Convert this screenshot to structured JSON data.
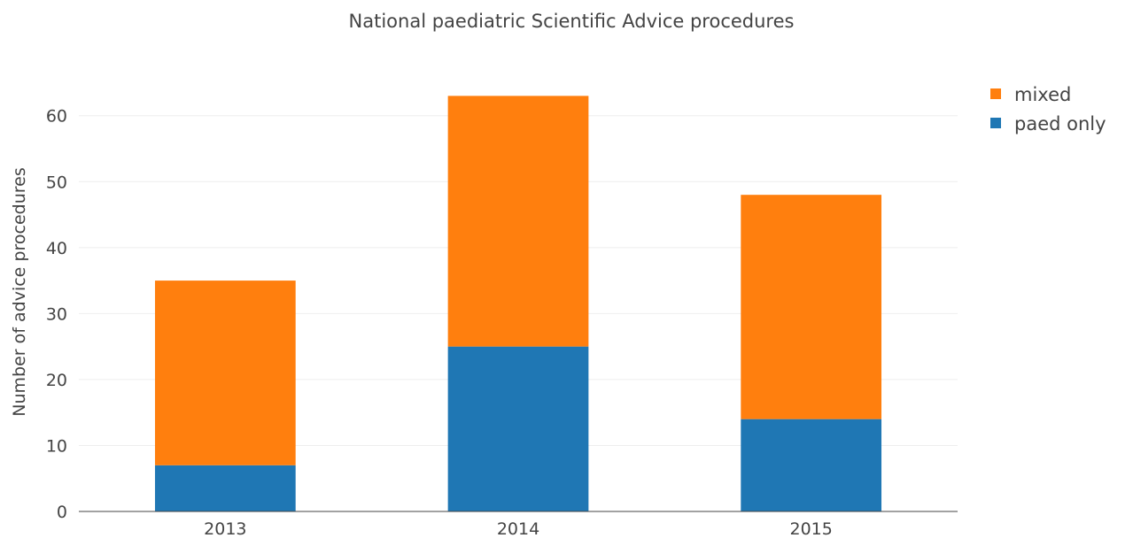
{
  "chart_data": {
    "type": "bar",
    "stacked": true,
    "title": "National paediatric Scientific Advice procedures",
    "xlabel": "",
    "ylabel": "Number of advice procedures",
    "categories": [
      "2013",
      "2014",
      "2015"
    ],
    "series": [
      {
        "name": "paed only",
        "values": [
          7,
          25,
          14
        ],
        "color": "#1f77b4"
      },
      {
        "name": "mixed",
        "values": [
          28,
          38,
          34
        ],
        "color": "#ff7f0e"
      }
    ],
    "ylim": [
      0,
      66
    ],
    "yticks": [
      "0",
      "10",
      "20",
      "30",
      "40",
      "50",
      "60"
    ],
    "grid": true,
    "legend": {
      "placement": "top-right",
      "order": [
        "mixed",
        "paed only"
      ]
    }
  }
}
